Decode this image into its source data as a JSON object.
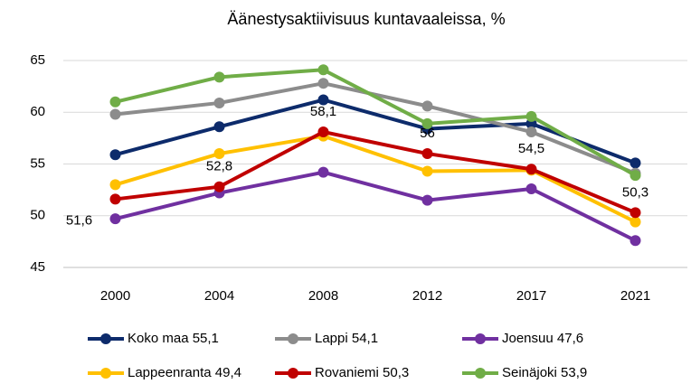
{
  "chart_data": {
    "type": "line",
    "title": "Äänestysaktiivisuus kuntavaaleissa, %",
    "categories": [
      "2000",
      "2004",
      "2008",
      "2012",
      "2017",
      "2021"
    ],
    "series": [
      {
        "name": "Koko maa 55,1",
        "color": "#0d2b6b",
        "values": [
          55.9,
          58.6,
          61.2,
          58.4,
          58.9,
          55.1
        ]
      },
      {
        "name": "Lappi 54,1",
        "color": "#8c8c8c",
        "values": [
          59.8,
          60.9,
          62.8,
          60.6,
          58.1,
          54.1
        ]
      },
      {
        "name": "Joensuu 47,6",
        "color": "#7030a0",
        "values": [
          49.7,
          52.2,
          54.2,
          51.5,
          52.6,
          47.6
        ]
      },
      {
        "name": "Lappeenranta 49,4",
        "color": "#ffc000",
        "values": [
          53.0,
          56.0,
          57.7,
          54.3,
          54.4,
          49.4
        ]
      },
      {
        "name": "Rovaniemi 50,3",
        "color": "#c00000",
        "values": [
          51.6,
          52.8,
          58.1,
          56,
          54.5,
          50.3
        ],
        "value_labels": [
          "51,6",
          "52,8",
          "58,1",
          "56",
          "54,5",
          "50,3"
        ]
      },
      {
        "name": "Seinäjoki 53,9",
        "color": "#70ad47",
        "values": [
          61.0,
          63.4,
          64.1,
          58.9,
          59.6,
          53.9
        ]
      }
    ],
    "ylim": [
      45,
      65
    ],
    "yticks": [
      45,
      50,
      55,
      60,
      65
    ],
    "grid": true,
    "legend": "bottom"
  }
}
